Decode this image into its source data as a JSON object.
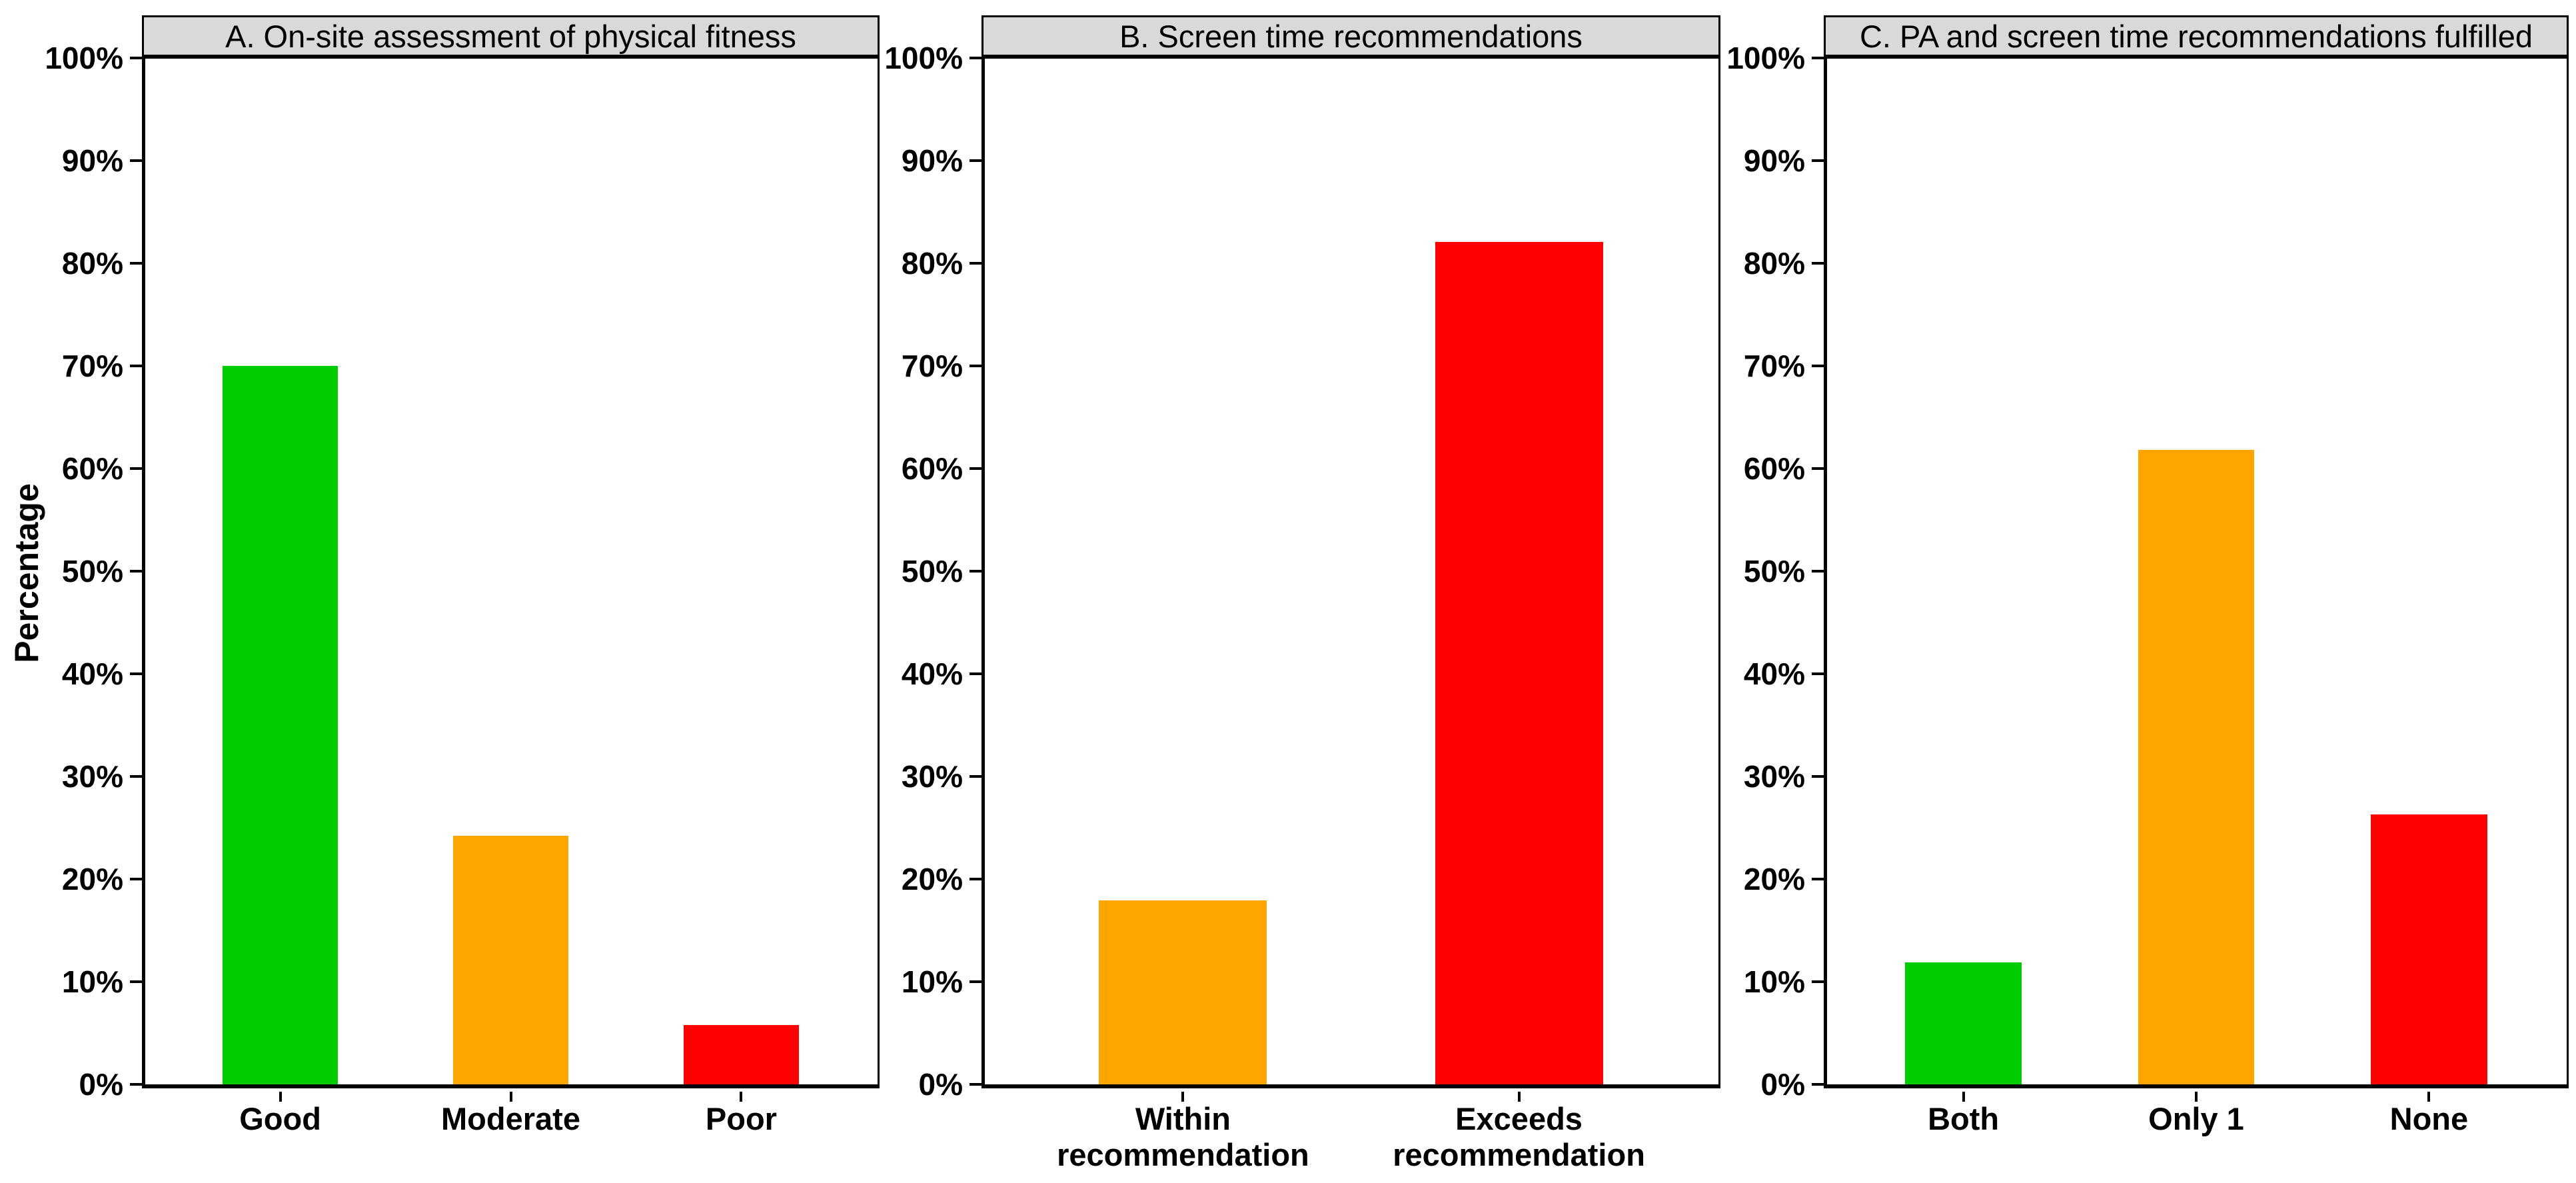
{
  "figure": {
    "ylabel": "Percentage",
    "background": "#FFFFFF"
  },
  "axis": {
    "y_tick_labels": [
      "100%",
      "90%",
      "80%",
      "70%",
      "60%",
      "50%",
      "40%",
      "30%",
      "20%",
      "10%",
      "0%"
    ],
    "y_tick_values": [
      100,
      90,
      80,
      70,
      60,
      50,
      40,
      30,
      20,
      10,
      0
    ],
    "ylim": [
      0,
      100
    ]
  },
  "colors": {
    "green": "#00CC00",
    "orange": "#FFA500",
    "red": "#FF0000",
    "strip_background": "#D9D9D9",
    "axis": "#000000"
  },
  "chart_data": [
    {
      "type": "bar",
      "title": "A. On-site assessment of physical fitness",
      "categories": [
        "Good",
        "Moderate",
        "Poor"
      ],
      "values": [
        70.0,
        24.2,
        5.8
      ],
      "bar_colors": [
        "#00CC00",
        "#FFA500",
        "#FF0000"
      ],
      "xlabel": "",
      "ylabel": "Percentage",
      "ylim": [
        0,
        100
      ],
      "grid": false,
      "legend": "none"
    },
    {
      "type": "bar",
      "title": "B. Screen time recommendations",
      "categories": [
        "Within recommendation",
        "Exceeds recommendation"
      ],
      "values": [
        17.9,
        82.1
      ],
      "bar_colors": [
        "#FFA500",
        "#FF0000"
      ],
      "xlabel": "",
      "ylabel": "",
      "ylim": [
        0,
        100
      ],
      "grid": false,
      "legend": "none"
    },
    {
      "type": "bar",
      "title": "C. PA and screen time recommendations fulfilled",
      "categories": [
        "Both",
        "Only 1",
        "None"
      ],
      "values": [
        11.9,
        61.8,
        26.3
      ],
      "bar_colors": [
        "#00CC00",
        "#FFA500",
        "#FF0000"
      ],
      "xlabel": "",
      "ylabel": "",
      "ylim": [
        0,
        100
      ],
      "grid": false,
      "legend": "none"
    }
  ]
}
